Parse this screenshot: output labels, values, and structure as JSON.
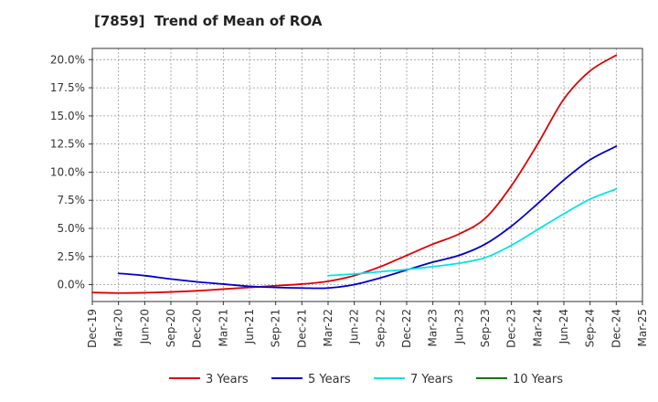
{
  "chart_data": {
    "type": "line",
    "title": "[7859]  Trend of Mean of ROA",
    "xlabel": "",
    "ylabel": "",
    "categories": [
      "Dec-19",
      "Mar-20",
      "Jun-20",
      "Sep-20",
      "Dec-20",
      "Mar-21",
      "Jun-21",
      "Sep-21",
      "Dec-21",
      "Mar-22",
      "Jun-22",
      "Sep-22",
      "Dec-22",
      "Mar-23",
      "Jun-23",
      "Sep-23",
      "Dec-23",
      "Mar-24",
      "Jun-24",
      "Sep-24",
      "Dec-24",
      "Mar-25"
    ],
    "y_ticks": [
      "0.0%",
      "2.5%",
      "5.0%",
      "7.5%",
      "10.0%",
      "12.5%",
      "15.0%",
      "17.5%",
      "20.0%"
    ],
    "ylim": [
      -1.5,
      21.0
    ],
    "grid": true,
    "legend_position": "bottom",
    "series": [
      {
        "name": "3 Years",
        "color": "#dd0000",
        "values": [
          -0.7,
          -0.75,
          -0.72,
          -0.65,
          -0.55,
          -0.4,
          -0.25,
          -0.1,
          0.05,
          0.3,
          0.8,
          1.6,
          2.6,
          3.6,
          4.5,
          5.9,
          8.8,
          12.5,
          16.5,
          19.0,
          20.4,
          null
        ]
      },
      {
        "name": "5 Years",
        "color": "#0000cc",
        "values": [
          null,
          1.0,
          0.8,
          0.5,
          0.25,
          0.05,
          -0.15,
          -0.25,
          -0.3,
          -0.3,
          0.0,
          0.6,
          1.3,
          2.0,
          2.6,
          3.6,
          5.2,
          7.2,
          9.3,
          11.1,
          12.3,
          null
        ]
      },
      {
        "name": "7 Years",
        "color": "#00e5e5",
        "values": [
          null,
          null,
          null,
          null,
          null,
          null,
          null,
          null,
          null,
          0.8,
          0.95,
          1.15,
          1.35,
          1.6,
          1.9,
          2.4,
          3.5,
          4.9,
          6.3,
          7.6,
          8.5,
          null
        ]
      },
      {
        "name": "10 Years",
        "color": "#007700",
        "values": [
          null,
          null,
          null,
          null,
          null,
          null,
          null,
          null,
          null,
          null,
          null,
          null,
          null,
          null,
          null,
          null,
          null,
          null,
          null,
          null,
          null,
          null
        ]
      }
    ]
  }
}
